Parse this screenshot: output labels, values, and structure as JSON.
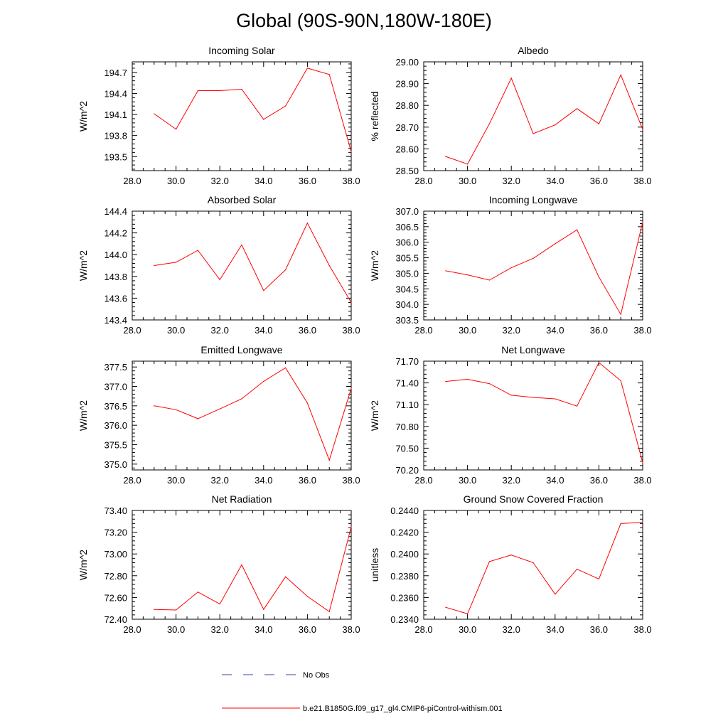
{
  "title": "Global (90S-90N,180W-180E)",
  "colors": {
    "model_line": "#ff0000",
    "obs_line": "#3344aa",
    "axes": "#000000"
  },
  "legend": {
    "obs_label": "No Obs",
    "model_label": "b.e21.B1850G.f09_g17_gl4.CMIP6-piControl-withism.001"
  },
  "chart_data": [
    {
      "type": "line",
      "title": "Incoming Solar",
      "ylabel": "W/m^2",
      "xlabel": "",
      "xlim": [
        28,
        38
      ],
      "xticks": [
        "28.0",
        "30.0",
        "32.0",
        "34.0",
        "36.0",
        "38.0"
      ],
      "ylim": [
        193.3,
        194.85
      ],
      "yticks": [
        "193.5",
        "193.8",
        "194.1",
        "194.4",
        "194.7"
      ],
      "series": [
        {
          "name": "b.e21.B1850G.f09_g17_gl4.CMIP6-piControl-withism.001",
          "x": [
            29,
            30,
            31,
            32,
            33,
            34,
            35,
            36,
            37,
            38
          ],
          "y": [
            194.11,
            193.89,
            194.44,
            194.44,
            194.46,
            194.03,
            194.22,
            194.76,
            194.67,
            193.57
          ]
        }
      ]
    },
    {
      "type": "line",
      "title": "Albedo",
      "ylabel": "% reflected",
      "xlabel": "",
      "xlim": [
        28,
        38
      ],
      "xticks": [
        "28.0",
        "30.0",
        "32.0",
        "34.0",
        "36.0",
        "38.0"
      ],
      "ylim": [
        28.5,
        29.0
      ],
      "yticks": [
        "28.50",
        "28.60",
        "28.70",
        "28.80",
        "28.90",
        "29.00"
      ],
      "series": [
        {
          "name": "b.e21.B1850G.f09_g17_gl4.CMIP6-piControl-withism.001",
          "x": [
            29,
            30,
            31,
            32,
            33,
            34,
            35,
            36,
            37,
            38
          ],
          "y": [
            28.565,
            28.53,
            28.715,
            28.925,
            28.67,
            28.71,
            28.785,
            28.715,
            28.94,
            28.69
          ]
        }
      ]
    },
    {
      "type": "line",
      "title": "Absorbed Solar",
      "ylabel": "W/m^2",
      "xlabel": "",
      "xlim": [
        28,
        38
      ],
      "xticks": [
        "28.0",
        "30.0",
        "32.0",
        "34.0",
        "36.0",
        "38.0"
      ],
      "ylim": [
        143.4,
        144.4
      ],
      "yticks": [
        "143.4",
        "143.6",
        "143.8",
        "144.0",
        "144.2",
        "144.4"
      ],
      "series": [
        {
          "name": "b.e21.B1850G.f09_g17_gl4.CMIP6-piControl-withism.001",
          "x": [
            29,
            30,
            31,
            32,
            33,
            34,
            35,
            36,
            37,
            38
          ],
          "y": [
            143.9,
            143.93,
            144.04,
            143.77,
            144.09,
            143.67,
            143.86,
            144.29,
            143.9,
            143.56
          ]
        }
      ]
    },
    {
      "type": "line",
      "title": "Incoming Longwave",
      "ylabel": "W/m^2",
      "xlabel": "",
      "xlim": [
        28,
        38
      ],
      "xticks": [
        "28.0",
        "30.0",
        "32.0",
        "34.0",
        "36.0",
        "38.0"
      ],
      "ylim": [
        303.5,
        307.0
      ],
      "yticks": [
        "303.5",
        "304.0",
        "304.5",
        "305.0",
        "305.5",
        "306.0",
        "306.5",
        "307.0"
      ],
      "series": [
        {
          "name": "b.e21.B1850G.f09_g17_gl4.CMIP6-piControl-withism.001",
          "x": [
            29,
            30,
            31,
            32,
            33,
            34,
            35,
            36,
            37,
            38
          ],
          "y": [
            305.08,
            304.95,
            304.78,
            305.18,
            305.48,
            305.95,
            306.4,
            304.88,
            303.68,
            306.65
          ]
        }
      ]
    },
    {
      "type": "line",
      "title": "Emitted Longwave",
      "ylabel": "W/m^2",
      "xlabel": "",
      "xlim": [
        28,
        38
      ],
      "xticks": [
        "28.0",
        "30.0",
        "32.0",
        "34.0",
        "36.0",
        "38.0"
      ],
      "ylim": [
        374.85,
        377.65
      ],
      "yticks": [
        "375.0",
        "375.5",
        "376.0",
        "376.5",
        "377.0",
        "377.5"
      ],
      "series": [
        {
          "name": "b.e21.B1850G.f09_g17_gl4.CMIP6-piControl-withism.001",
          "x": [
            29,
            30,
            31,
            32,
            33,
            34,
            35,
            36,
            37,
            38
          ],
          "y": [
            376.5,
            376.4,
            376.17,
            376.42,
            376.68,
            377.13,
            377.48,
            376.57,
            375.1,
            376.95
          ]
        }
      ]
    },
    {
      "type": "line",
      "title": "Net Longwave",
      "ylabel": "W/m^2",
      "xlabel": "",
      "xlim": [
        28,
        38
      ],
      "xticks": [
        "28.0",
        "30.0",
        "32.0",
        "34.0",
        "36.0",
        "38.0"
      ],
      "ylim": [
        70.2,
        71.7
      ],
      "yticks": [
        "70.20",
        "70.50",
        "70.80",
        "71.10",
        "71.40",
        "71.70"
      ],
      "series": [
        {
          "name": "b.e21.B1850G.f09_g17_gl4.CMIP6-piControl-withism.001",
          "x": [
            29,
            30,
            31,
            32,
            33,
            34,
            35,
            36,
            37,
            38
          ],
          "y": [
            71.42,
            71.45,
            71.39,
            71.23,
            71.2,
            71.18,
            71.08,
            71.68,
            71.43,
            70.3
          ]
        }
      ]
    },
    {
      "type": "line",
      "title": "Net Radiation",
      "ylabel": "W/m^2",
      "xlabel": "",
      "xlim": [
        28,
        38
      ],
      "xticks": [
        "28.0",
        "30.0",
        "32.0",
        "34.0",
        "36.0",
        "38.0"
      ],
      "ylim": [
        72.4,
        73.4
      ],
      "yticks": [
        "72.40",
        "72.60",
        "72.80",
        "73.00",
        "73.20",
        "73.40"
      ],
      "series": [
        {
          "name": "b.e21.B1850G.f09_g17_gl4.CMIP6-piControl-withism.001",
          "x": [
            29,
            30,
            31,
            32,
            33,
            34,
            35,
            36,
            37,
            38
          ],
          "y": [
            72.49,
            72.485,
            72.65,
            72.54,
            72.9,
            72.49,
            72.79,
            72.61,
            72.47,
            73.25
          ]
        }
      ]
    },
    {
      "type": "line",
      "title": "Ground Snow Covered Fraction",
      "ylabel": "unitless",
      "xlabel": "",
      "xlim": [
        28,
        38
      ],
      "xticks": [
        "28.0",
        "30.0",
        "32.0",
        "34.0",
        "36.0",
        "38.0"
      ],
      "ylim": [
        0.234,
        0.244
      ],
      "yticks": [
        "0.2340",
        "0.2360",
        "0.2380",
        "0.2400",
        "0.2420",
        "0.2440"
      ],
      "series": [
        {
          "name": "b.e21.B1850G.f09_g17_gl4.CMIP6-piControl-withism.001",
          "x": [
            29,
            30,
            31,
            32,
            33,
            34,
            35,
            36,
            37,
            38
          ],
          "y": [
            0.2351,
            0.2345,
            0.2393,
            0.2399,
            0.2392,
            0.2363,
            0.2386,
            0.2377,
            0.2428,
            0.2429
          ]
        }
      ]
    }
  ]
}
